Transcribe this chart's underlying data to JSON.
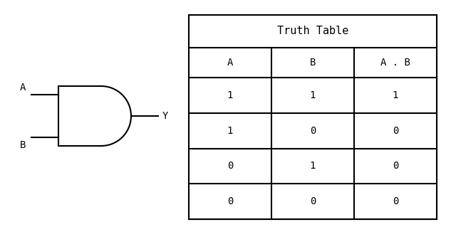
{
  "truth_table_title": "Truth Table",
  "col_headers": [
    "A",
    "B",
    "A . B"
  ],
  "rows": [
    [
      "1",
      "1",
      "1"
    ],
    [
      "1",
      "0",
      "0"
    ],
    [
      "0",
      "1",
      "0"
    ],
    [
      "0",
      "0",
      "0"
    ]
  ],
  "gate_label_A": "A",
  "gate_label_B": "B",
  "gate_label_Y": "Y",
  "bg_color": "#ffffff",
  "line_color": "#000000",
  "font_size": 10,
  "header_font_size": 11
}
